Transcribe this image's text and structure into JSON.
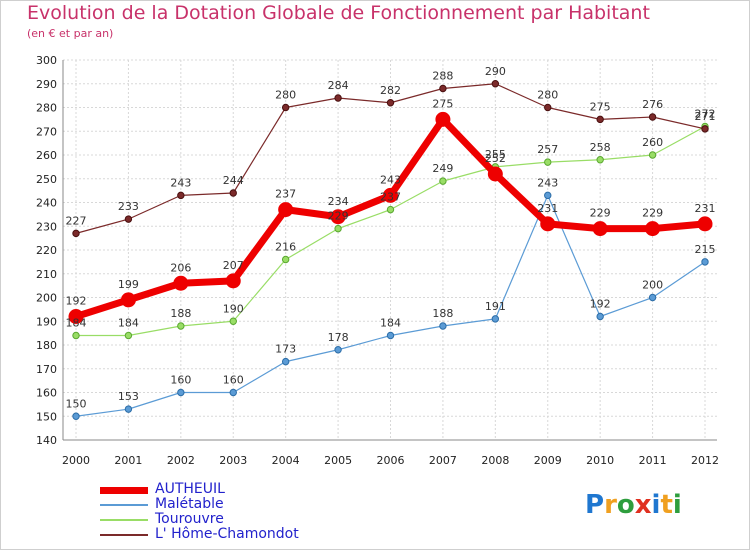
{
  "title": "Evolution de la Dotation Globale de Fonctionnement par Habitant",
  "subtitle": "(en € et par an)",
  "logo": "Proxiti",
  "chart_data": {
    "type": "line",
    "x": [
      "2000",
      "2001",
      "2002",
      "2003",
      "2004",
      "2005",
      "2006",
      "2007",
      "2008",
      "2009",
      "2010",
      "2011",
      "2012"
    ],
    "ylim": [
      140,
      300
    ],
    "ytick_step": 10,
    "grid": true,
    "series": [
      {
        "name": "AUTHEUIL",
        "color": "#ee0000",
        "width": 7,
        "marker": 7,
        "text_color": "#2222cc",
        "values": [
          192,
          199,
          206,
          207,
          237,
          234,
          243,
          275,
          252,
          231,
          229,
          229,
          231
        ]
      },
      {
        "name": "Malétable",
        "color": "#5b9bd5",
        "width": 1.2,
        "marker": 3.2,
        "text_color": "#2222cc",
        "values": [
          150,
          153,
          160,
          160,
          173,
          178,
          184,
          188,
          191,
          243,
          192,
          200,
          215
        ]
      },
      {
        "name": "Tourouvre",
        "color": "#99dd66",
        "width": 1.2,
        "marker": 3.2,
        "text_color": "#2222cc",
        "values": [
          184,
          184,
          188,
          190,
          216,
          229,
          237,
          249,
          255,
          257,
          258,
          260,
          272
        ]
      },
      {
        "name": "L' Hôme-Chamondot",
        "color": "#7b2a2a",
        "width": 1.2,
        "marker": 3.2,
        "text_color": "#2222cc",
        "values": [
          227,
          233,
          243,
          244,
          280,
          284,
          282,
          288,
          290,
          280,
          275,
          276,
          271
        ]
      }
    ]
  }
}
